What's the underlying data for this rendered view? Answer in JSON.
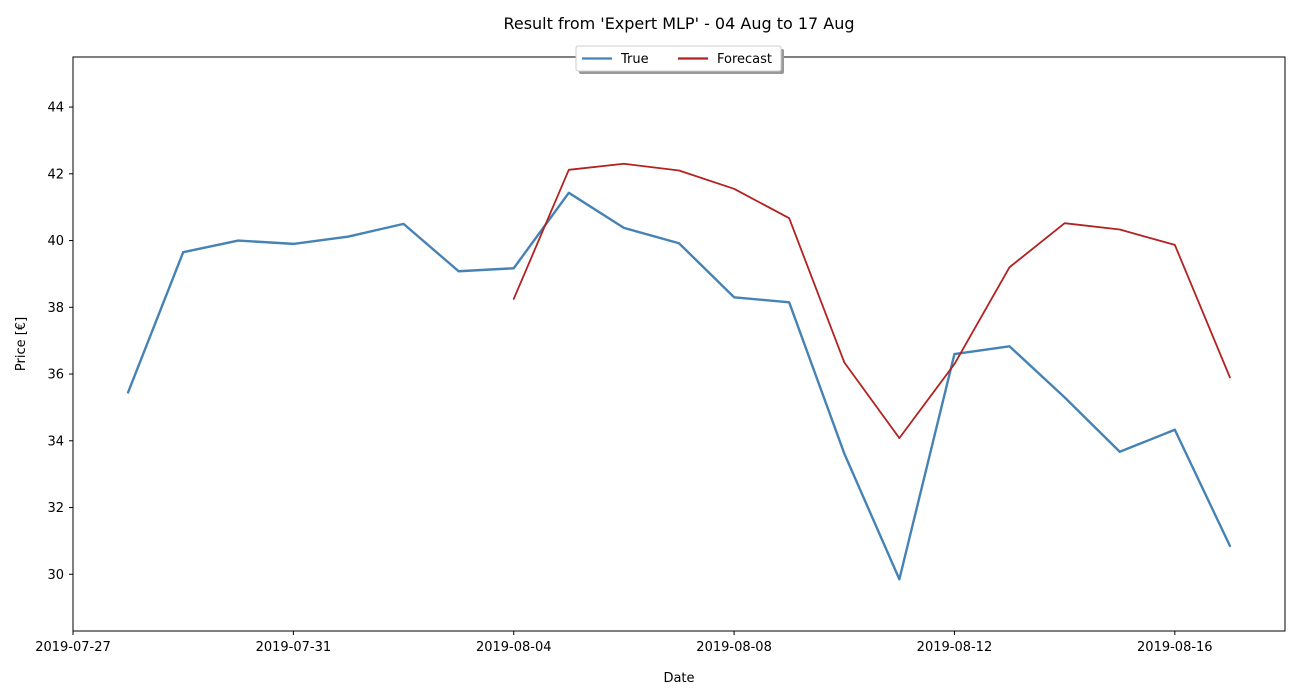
{
  "chart_data": {
    "type": "line",
    "title": "Result from 'Expert MLP' - 04 Aug to 17 Aug",
    "xlabel": "Date",
    "ylabel": "Price [€]",
    "xlim": [
      "2019-07-27",
      "2019-08-18"
    ],
    "ylim": [
      28.3,
      45.5
    ],
    "x_ticks": [
      "2019-07-27",
      "2019-07-31",
      "2019-08-04",
      "2019-08-08",
      "2019-08-12",
      "2019-08-16"
    ],
    "y_ticks": [
      30,
      32,
      34,
      36,
      38,
      40,
      42,
      44
    ],
    "grid": false,
    "legend": {
      "position": "top-center",
      "columns": 2
    },
    "series": [
      {
        "name": "True",
        "color": "#4682b4",
        "points": [
          [
            "2019-07-28",
            35.45
          ],
          [
            "2019-07-29",
            39.65
          ],
          [
            "2019-07-30",
            40.0
          ],
          [
            "2019-07-31",
            39.9
          ],
          [
            "2019-08-01",
            40.12
          ],
          [
            "2019-08-02",
            40.5
          ],
          [
            "2019-08-03",
            39.08
          ],
          [
            "2019-08-04",
            39.17
          ],
          [
            "2019-08-05",
            41.43
          ],
          [
            "2019-08-06",
            40.38
          ],
          [
            "2019-08-07",
            39.92
          ],
          [
            "2019-08-08",
            38.3
          ],
          [
            "2019-08-09",
            38.15
          ],
          [
            "2019-08-10",
            33.62
          ],
          [
            "2019-08-11",
            29.85
          ],
          [
            "2019-08-12",
            36.6
          ],
          [
            "2019-08-13",
            36.83
          ],
          [
            "2019-08-14",
            35.3
          ],
          [
            "2019-08-15",
            33.67
          ],
          [
            "2019-08-16",
            34.33
          ],
          [
            "2019-08-17",
            30.85
          ]
        ]
      },
      {
        "name": "Forecast",
        "color": "#b22222",
        "points": [
          [
            "2019-08-04",
            38.25
          ],
          [
            "2019-08-05",
            42.12
          ],
          [
            "2019-08-06",
            42.3
          ],
          [
            "2019-08-07",
            42.1
          ],
          [
            "2019-08-08",
            41.55
          ],
          [
            "2019-08-09",
            40.67
          ],
          [
            "2019-08-10",
            36.35
          ],
          [
            "2019-08-11",
            34.08
          ],
          [
            "2019-08-12",
            36.3
          ],
          [
            "2019-08-13",
            39.2
          ],
          [
            "2019-08-14",
            40.52
          ],
          [
            "2019-08-15",
            40.33
          ],
          [
            "2019-08-16",
            39.87
          ],
          [
            "2019-08-17",
            35.9
          ]
        ]
      }
    ]
  }
}
